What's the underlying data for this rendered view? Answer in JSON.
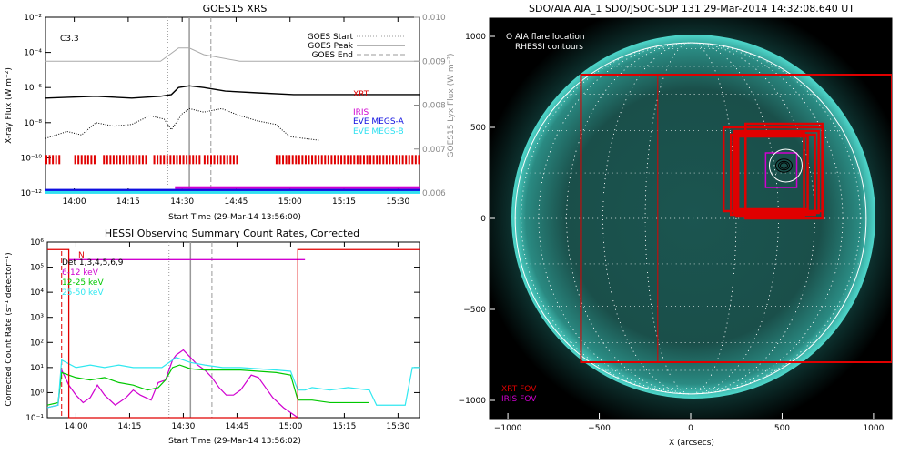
{
  "chart_data": [
    {
      "type": "line",
      "title": "GOES15 XRS",
      "ylabel": "X-ray Flux (W m⁻²)",
      "ylabel_right": "GOES15 Lyx Flux (W m⁻²)",
      "xlabel": "Start Time (29-Mar-14 13:56:00)",
      "flare_class": "C3.3",
      "xlim_min": [
        -4,
        100
      ],
      "ylim_log": [
        -12,
        -2
      ],
      "ylim_right": [
        0.006,
        0.01
      ],
      "x_ticks": [
        {
          "m": 4,
          "label": "14:00"
        },
        {
          "m": 19,
          "label": "14:15"
        },
        {
          "m": 34,
          "label": "14:30"
        },
        {
          "m": 49,
          "label": "14:45"
        },
        {
          "m": 64,
          "label": "15:00"
        },
        {
          "m": 79,
          "label": "15:15"
        },
        {
          "m": 94,
          "label": "15:30"
        }
      ],
      "y_ticks": [
        {
          "v": -12,
          "label": "10⁻¹²"
        },
        {
          "v": -10,
          "label": "10⁻¹⁰"
        },
        {
          "v": -8,
          "label": "10⁻⁸"
        },
        {
          "v": -6,
          "label": "10⁻⁶"
        },
        {
          "v": -4,
          "label": "10⁻⁴"
        },
        {
          "v": -2,
          "label": "10⁻²"
        }
      ],
      "y_ticks_right": [
        {
          "v": 0.006,
          "label": "0.006"
        },
        {
          "v": 0.007,
          "label": "0.007"
        },
        {
          "v": 0.008,
          "label": "0.008"
        },
        {
          "v": 0.009,
          "label": "0.009"
        },
        {
          "v": 0.01,
          "label": "0.010"
        }
      ],
      "events": {
        "start_min": 30,
        "peak_min": 36,
        "end_min": 42
      },
      "legend_lines": [
        "GOES Start",
        "GOES Peak",
        "GOES End"
      ],
      "instruments": [
        {
          "label": "XRT",
          "color": "#e00000"
        },
        {
          "label": "IRIS",
          "color": "#d000d0"
        },
        {
          "label": "EVE MEGS-A",
          "color": "#1010e0"
        },
        {
          "label": "EVE MEGS-B",
          "color": "#30e0f0"
        }
      ],
      "series": [
        {
          "name": "GOES long",
          "x": [
            -4,
            10,
            20,
            28,
            31,
            33,
            36,
            40,
            46,
            55,
            65,
            80,
            100
          ],
          "y_log": [
            -6.6,
            -6.5,
            -6.6,
            -6.5,
            -6.4,
            -6.0,
            -5.9,
            -6.0,
            -6.2,
            -6.3,
            -6.4,
            -6.4,
            -6.4
          ]
        },
        {
          "name": "GOES short",
          "x": [
            -4,
            2,
            6,
            10,
            15,
            20,
            25,
            29,
            31,
            34,
            36,
            40,
            45,
            50,
            55,
            60,
            64,
            68,
            72
          ],
          "y_log": [
            -8.9,
            -8.5,
            -8.7,
            -8.0,
            -8.2,
            -8.1,
            -7.6,
            -7.8,
            -8.4,
            -7.5,
            -7.2,
            -7.4,
            -7.2,
            -7.6,
            -7.9,
            -8.1,
            -8.8,
            -8.9,
            -9.0
          ]
        },
        {
          "name": "Lyx",
          "x": [
            -4,
            20,
            28,
            33,
            36,
            40,
            50,
            70,
            100
          ],
          "y": [
            0.009,
            0.009,
            0.009,
            0.0093,
            0.0093,
            0.00915,
            0.009,
            0.009,
            0.009
          ]
        }
      ],
      "xrt_coverage_min": [
        [
          -4,
          0
        ],
        [
          4,
          10
        ],
        [
          12,
          24
        ],
        [
          26,
          39
        ],
        [
          40,
          49
        ],
        [
          60,
          100
        ]
      ],
      "iris_coverage_min": [
        [
          32,
          100
        ]
      ],
      "megsa_coverage_min": [
        [
          -4,
          100
        ]
      ],
      "megsb_coverage_min": [
        [
          -4,
          100
        ]
      ]
    },
    {
      "type": "line",
      "title": "HESSI Observing Summary Count Rates, Corrected",
      "ylabel": "Corrected Count Rate (s⁻¹ detector⁻¹)",
      "xlabel": "Start Time (29-Mar-14 13:56:02)",
      "xlim_min": [
        -4,
        100
      ],
      "ylim_log": [
        -1,
        6
      ],
      "x_ticks": [
        {
          "m": 4,
          "label": "14:00"
        },
        {
          "m": 19,
          "label": "14:15"
        },
        {
          "m": 34,
          "label": "14:30"
        },
        {
          "m": 49,
          "label": "14:45"
        },
        {
          "m": 64,
          "label": "15:00"
        },
        {
          "m": 79,
          "label": "15:15"
        },
        {
          "m": 94,
          "label": "15:30"
        }
      ],
      "y_ticks": [
        {
          "v": -1,
          "label": "10⁻¹"
        },
        {
          "v": 0,
          "label": "10⁰"
        },
        {
          "v": 1,
          "label": "10¹"
        },
        {
          "v": 2,
          "label": "10²"
        },
        {
          "v": 3,
          "label": "10³"
        },
        {
          "v": 4,
          "label": "10⁴"
        },
        {
          "v": 5,
          "label": "10⁵"
        },
        {
          "v": 6,
          "label": "10⁶"
        }
      ],
      "events": {
        "start_min": 30,
        "peak_min": 36,
        "end_min": 42
      },
      "night_marker": "N",
      "det_label": "Det 1,3,4,5,6,9",
      "series": [
        {
          "name": "6-12 keV",
          "color": "#d000d0",
          "x": [
            -4,
            -1,
            0,
            2,
            4,
            6,
            8,
            10,
            12,
            15,
            18,
            20,
            22,
            25,
            27,
            29,
            30,
            31,
            32,
            34,
            36,
            38,
            40,
            42,
            44,
            46,
            48,
            50,
            52,
            53,
            55,
            57,
            59,
            62,
            64,
            66
          ],
          "y_log": [
            -0.6,
            -0.5,
            0.9,
            0.3,
            -0.1,
            -0.4,
            -0.2,
            0.3,
            -0.1,
            -0.5,
            -0.2,
            0.1,
            -0.1,
            -0.3,
            0.4,
            0.5,
            0.9,
            1.3,
            1.5,
            1.7,
            1.4,
            1.1,
            0.9,
            0.6,
            0.2,
            -0.1,
            -0.1,
            0.1,
            0.5,
            0.7,
            0.6,
            0.2,
            -0.2,
            -0.6,
            -0.8,
            -1.0
          ]
        },
        {
          "name": "12-25 keV",
          "color": "#00c800",
          "x": [
            -4,
            -1,
            0,
            4,
            8,
            12,
            16,
            20,
            24,
            27,
            29,
            31,
            33,
            36,
            40,
            45,
            50,
            55,
            60,
            64,
            66,
            68,
            70,
            75,
            80,
            86
          ],
          "y_log": [
            -0.5,
            -0.4,
            0.8,
            0.6,
            0.5,
            0.6,
            0.4,
            0.3,
            0.1,
            0.2,
            0.5,
            1.0,
            1.1,
            0.95,
            0.9,
            0.9,
            0.9,
            0.85,
            0.8,
            0.7,
            -0.3,
            -0.3,
            -0.3,
            -0.4,
            -0.4,
            -0.4
          ]
        },
        {
          "name": "25-50 keV",
          "color": "#30e8f0",
          "x": [
            -4,
            -1,
            0,
            4,
            8,
            12,
            16,
            20,
            24,
            28,
            30,
            32,
            36,
            40,
            45,
            50,
            55,
            60,
            64,
            66,
            68,
            70,
            75,
            80,
            86,
            88,
            96,
            98,
            100
          ],
          "y_log": [
            -0.6,
            -0.5,
            1.3,
            1.0,
            1.1,
            1.0,
            1.1,
            1.0,
            1.0,
            1.0,
            1.2,
            1.4,
            1.2,
            1.1,
            1.0,
            1.0,
            0.95,
            0.9,
            0.85,
            0.1,
            0.1,
            0.2,
            0.1,
            0.2,
            0.1,
            -0.5,
            -0.5,
            1.0,
            1.0
          ]
        },
        {
          "name": "attenuator",
          "color": "#d000d0",
          "x": [
            2,
            68
          ],
          "y_log": [
            5.3,
            5.3
          ]
        },
        {
          "name": "saa",
          "color": "#e00000",
          "x": [
            -4,
            2,
            2,
            66,
            66,
            100
          ],
          "y_log": [
            5.7,
            5.7,
            -1,
            -1,
            5.7,
            5.7
          ]
        }
      ]
    },
    {
      "type": "scatter",
      "title": "SDO/AIA AIA_1 SDO/JSOC-SDP 131 29-Mar-2014 14:32:08.640 UT",
      "xlabel": "X (arcsecs)",
      "ylabel": "",
      "xlim": [
        -1100,
        1100
      ],
      "ylim": [
        -1100,
        1100
      ],
      "x_ticks": [
        {
          "v": -1000,
          "label": "−1000"
        },
        {
          "v": -500,
          "label": "−500"
        },
        {
          "v": 0,
          "label": "0"
        },
        {
          "v": 500,
          "label": "500"
        },
        {
          "v": 1000,
          "label": "1000"
        }
      ],
      "y_ticks": [
        {
          "v": -1000,
          "label": "−1000"
        },
        {
          "v": -500,
          "label": "−500"
        },
        {
          "v": 0,
          "label": "0"
        },
        {
          "v": 500,
          "label": "500"
        },
        {
          "v": 1000,
          "label": "1000"
        }
      ],
      "legend_top": [
        "O AIA flare location",
        "RHESSI contours"
      ],
      "legend_bottom": [
        {
          "label": "XRT FOV",
          "color": "#e00000"
        },
        {
          "label": "IRIS FOV",
          "color": "#d000d0"
        }
      ],
      "sun_radius_arcsec": 960,
      "flare_location": {
        "x": 520,
        "y": 290
      },
      "xrt_fov_big": [
        -600,
        -790,
        1100,
        790
      ],
      "xrt_fov_mid": [
        -180,
        -790,
        1100,
        790
      ],
      "xrt_fov_small": [
        [
          180,
          40,
          720,
          500
        ],
        [
          220,
          20,
          680,
          460
        ],
        [
          240,
          30,
          700,
          480
        ],
        [
          260,
          50,
          640,
          450
        ],
        [
          300,
          0,
          720,
          520
        ],
        [
          250,
          10,
          620,
          470
        ]
      ],
      "iris_fov": [
        [
          410,
          170,
          580,
          360
        ]
      ]
    }
  ]
}
